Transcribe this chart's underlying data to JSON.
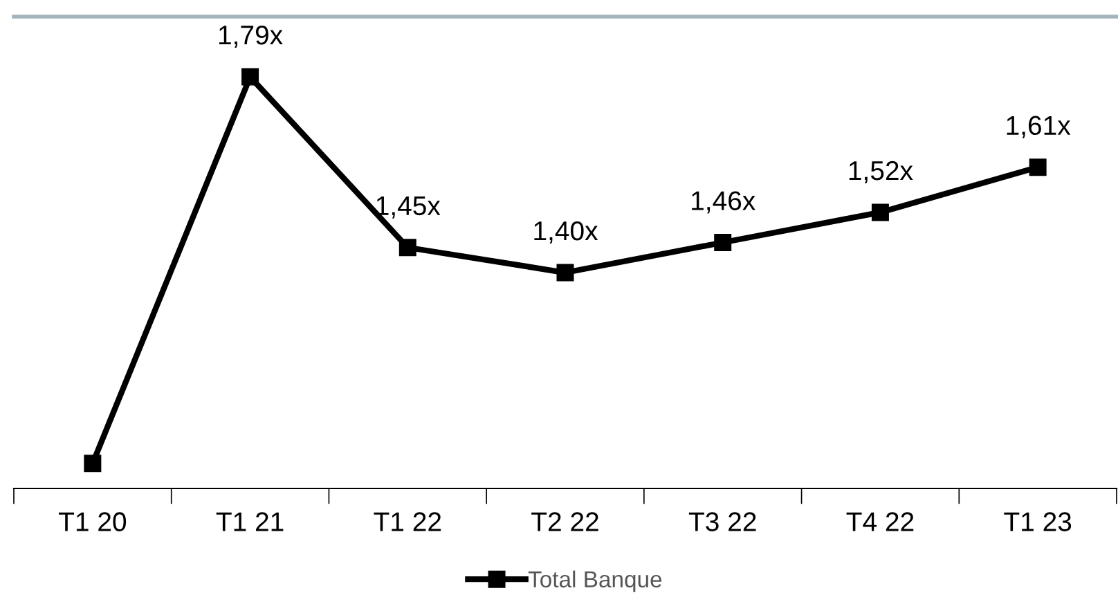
{
  "chart_data": {
    "type": "line",
    "categories": [
      "T1 20",
      "T1 21",
      "T1 22",
      "T2 22",
      "T3 22",
      "T4 22",
      "T1 23"
    ],
    "series": [
      {
        "name": "Total Banque",
        "color": "#000000",
        "values": [
          1.02,
          1.79,
          1.45,
          1.4,
          1.46,
          1.52,
          1.61
        ],
        "value_labels": [
          null,
          "1,79x",
          "1,45x",
          "1,40x",
          "1,46x",
          "1,52x",
          "1,61x"
        ]
      }
    ],
    "ylim": [
      0.97,
      1.91
    ],
    "tick_labels": "x",
    "marker": "square",
    "line_style": "solid",
    "grid": false,
    "legend": "bottom"
  }
}
